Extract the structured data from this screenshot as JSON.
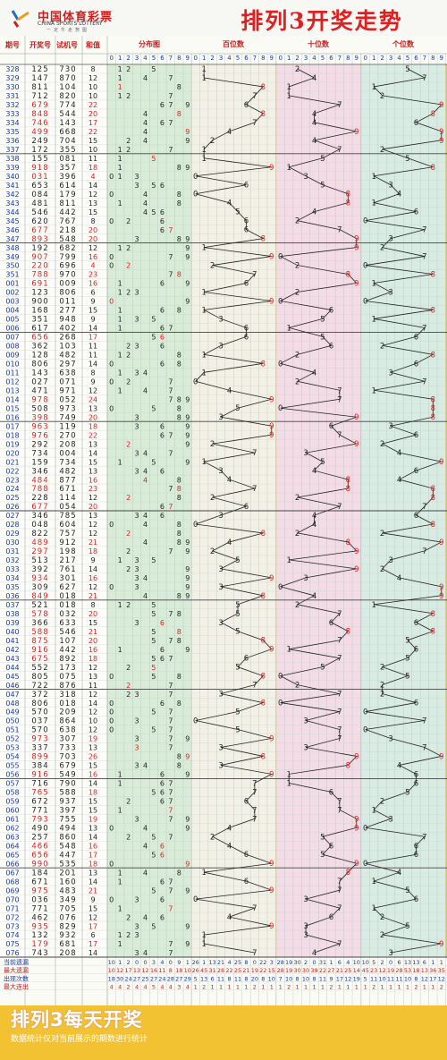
{
  "logo": {
    "cn": "中国体育彩票",
    "en": "CHINA SPORTS LOTTERY",
    "slogan": "一定牛走势图"
  },
  "title": "排列3开奖走势",
  "footer": {
    "title": "排列3每天开奖",
    "subtitle": "数据统计仅对当前展示的期数进行统计"
  },
  "header": {
    "period": "期号",
    "draw": "开奖号",
    "trial": "试机号",
    "sum": "和值",
    "dist": "分布图",
    "hundreds": "百位数",
    "tens": "十位数",
    "ones": "个位数",
    "digits": [
      "0",
      "1",
      "2",
      "3",
      "4",
      "5",
      "6",
      "7",
      "8",
      "9"
    ]
  },
  "colors": {
    "hundreds_bg": "#f3f1e6",
    "tens_bg": "#f3dce6",
    "ones_bg": "#d8ece4",
    "dist_bg": "#d8ecd8",
    "red": "#e02020",
    "accent": "#f2c232"
  },
  "chart_data": {
    "type": "table",
    "columns": [
      "期号",
      "开奖号",
      "试机号",
      "和值"
    ],
    "rows": [
      [
        "328",
        "125",
        "730",
        "8"
      ],
      [
        "329",
        "147",
        "870",
        "12"
      ],
      [
        "330",
        "811",
        "104",
        "10"
      ],
      [
        "331",
        "712",
        "820",
        "10"
      ],
      [
        "332",
        "679",
        "774",
        "22"
      ],
      [
        "333",
        "848",
        "544",
        "20"
      ],
      [
        "334",
        "746",
        "143",
        "17"
      ],
      [
        "335",
        "499",
        "668",
        "22"
      ],
      [
        "336",
        "249",
        "704",
        "15"
      ],
      [
        "337",
        "172",
        "355",
        "10"
      ],
      [
        "338",
        "155",
        "081",
        "11"
      ],
      [
        "339",
        "918",
        "357",
        "18"
      ],
      [
        "340",
        "031",
        "396",
        "4"
      ],
      [
        "341",
        "653",
        "614",
        "14"
      ],
      [
        "342",
        "084",
        "179",
        "12"
      ],
      [
        "343",
        "481",
        "811",
        "13"
      ],
      [
        "344",
        "546",
        "442",
        "15"
      ],
      [
        "345",
        "620",
        "767",
        "8"
      ],
      [
        "346",
        "677",
        "218",
        "20"
      ],
      [
        "347",
        "893",
        "548",
        "20"
      ],
      [
        "348",
        "192",
        "682",
        "12"
      ],
      [
        "349",
        "907",
        "799",
        "16"
      ],
      [
        "350",
        "220",
        "696",
        "4"
      ],
      [
        "351",
        "788",
        "970",
        "23"
      ],
      [
        "001",
        "691",
        "009",
        "16"
      ],
      [
        "002",
        "123",
        "806",
        "6"
      ],
      [
        "003",
        "900",
        "011",
        "9"
      ],
      [
        "004",
        "168",
        "277",
        "15"
      ],
      [
        "005",
        "351",
        "948",
        "9"
      ],
      [
        "006",
        "617",
        "402",
        "14"
      ],
      [
        "007",
        "656",
        "268",
        "17"
      ],
      [
        "008",
        "362",
        "103",
        "11"
      ],
      [
        "009",
        "128",
        "482",
        "11"
      ],
      [
        "010",
        "806",
        "297",
        "14"
      ],
      [
        "011",
        "143",
        "638",
        "8"
      ],
      [
        "012",
        "027",
        "071",
        "9"
      ],
      [
        "013",
        "471",
        "971",
        "12"
      ],
      [
        "014",
        "978",
        "052",
        "24"
      ],
      [
        "015",
        "508",
        "973",
        "13"
      ],
      [
        "016",
        "398",
        "749",
        "20"
      ],
      [
        "017",
        "963",
        "119",
        "18"
      ],
      [
        "018",
        "976",
        "270",
        "22"
      ],
      [
        "019",
        "292",
        "208",
        "13"
      ],
      [
        "020",
        "734",
        "004",
        "14"
      ],
      [
        "021",
        "159",
        "734",
        "15"
      ],
      [
        "022",
        "346",
        "482",
        "13"
      ],
      [
        "023",
        "484",
        "877",
        "16"
      ],
      [
        "024",
        "788",
        "671",
        "23"
      ],
      [
        "025",
        "228",
        "114",
        "12"
      ],
      [
        "026",
        "677",
        "054",
        "20"
      ],
      [
        "027",
        "346",
        "785",
        "13"
      ],
      [
        "028",
        "048",
        "604",
        "12"
      ],
      [
        "029",
        "822",
        "757",
        "12"
      ],
      [
        "030",
        "489",
        "912",
        "21"
      ],
      [
        "031",
        "297",
        "198",
        "18"
      ],
      [
        "032",
        "513",
        "217",
        "9"
      ],
      [
        "033",
        "392",
        "761",
        "14"
      ],
      [
        "034",
        "934",
        "301",
        "16"
      ],
      [
        "035",
        "309",
        "627",
        "12"
      ],
      [
        "036",
        "849",
        "018",
        "21"
      ],
      [
        "037",
        "521",
        "018",
        "8"
      ],
      [
        "038",
        "578",
        "032",
        "20"
      ],
      [
        "039",
        "366",
        "633",
        "15"
      ],
      [
        "040",
        "588",
        "546",
        "21"
      ],
      [
        "041",
        "875",
        "107",
        "20"
      ],
      [
        "042",
        "916",
        "442",
        "16"
      ],
      [
        "043",
        "675",
        "892",
        "18"
      ],
      [
        "044",
        "552",
        "173",
        "12"
      ],
      [
        "045",
        "805",
        "075",
        "13"
      ],
      [
        "046",
        "722",
        "876",
        "11"
      ],
      [
        "047",
        "372",
        "318",
        "12"
      ],
      [
        "048",
        "806",
        "018",
        "14"
      ],
      [
        "049",
        "570",
        "209",
        "12"
      ],
      [
        "050",
        "037",
        "864",
        "10"
      ],
      [
        "051",
        "570",
        "638",
        "12"
      ],
      [
        "052",
        "973",
        "307",
        "19"
      ],
      [
        "053",
        "337",
        "733",
        "13"
      ],
      [
        "054",
        "899",
        "703",
        "26"
      ],
      [
        "055",
        "384",
        "679",
        "15"
      ],
      [
        "056",
        "916",
        "549",
        "16"
      ],
      [
        "057",
        "716",
        "790",
        "14"
      ],
      [
        "058",
        "765",
        "588",
        "18"
      ],
      [
        "059",
        "672",
        "937",
        "15"
      ],
      [
        "060",
        "771",
        "397",
        "15"
      ],
      [
        "061",
        "793",
        "755",
        "19"
      ],
      [
        "062",
        "490",
        "494",
        "13"
      ],
      [
        "063",
        "257",
        "860",
        "14"
      ],
      [
        "064",
        "466",
        "548",
        "16"
      ],
      [
        "065",
        "656",
        "447",
        "17"
      ],
      [
        "066",
        "990",
        "535",
        "18"
      ],
      [
        "067",
        "184",
        "201",
        "13"
      ],
      [
        "068",
        "671",
        "160",
        "14"
      ],
      [
        "069",
        "975",
        "483",
        "21"
      ],
      [
        "070",
        "036",
        "349",
        "9"
      ],
      [
        "071",
        "771",
        "705",
        "15"
      ],
      [
        "072",
        "462",
        "076",
        "12"
      ],
      [
        "073",
        "935",
        "829",
        "17"
      ],
      [
        "074",
        "132",
        "932",
        "6"
      ],
      [
        "075",
        "179",
        "681",
        "17"
      ],
      [
        "076",
        "743",
        "208",
        "14"
      ]
    ],
    "stats": {
      "labels": [
        "当前遗漏",
        "最大遗漏",
        "出现次数",
        "最大连出"
      ],
      "dist": [
        [
          "10",
          "1",
          "2",
          "0",
          "0",
          "3",
          "4",
          "0",
          "9",
          "1"
        ],
        [
          "10",
          "12",
          "17",
          "13",
          "12",
          "16",
          "11",
          "8",
          "18",
          "10"
        ],
        [
          "18",
          "30",
          "24",
          "27",
          "25",
          "27",
          "24",
          "28",
          "27",
          "29"
        ],
        [
          "4",
          "4",
          "2",
          "4",
          "4",
          "5",
          "4",
          "4",
          "3",
          "4"
        ]
      ],
      "hundreds": [
        [
          "26",
          "1",
          "13",
          "21",
          "4",
          "25",
          "8",
          "0",
          "22",
          "3"
        ],
        [
          "26",
          "45",
          "31",
          "28",
          "22",
          "25",
          "21",
          "19",
          "22",
          "15"
        ],
        [
          "5",
          "13",
          "6",
          "11",
          "8",
          "11",
          "8",
          "20",
          "8",
          "10"
        ],
        [
          "1",
          "2",
          "1",
          "1",
          "1",
          "1",
          "1",
          "2",
          "1",
          "1"
        ]
      ],
      "tens": [
        [
          "28",
          "19",
          "30",
          "2",
          "0",
          "31",
          "1",
          "6",
          "4",
          "10"
        ],
        [
          "28",
          "19",
          "30",
          "30",
          "39",
          "22",
          "27",
          "21",
          "25",
          "14"
        ],
        [
          "7",
          "10",
          "8",
          "10",
          "8",
          "11",
          "9",
          "17",
          "12",
          "19"
        ],
        [
          "1",
          "2",
          "1",
          "1",
          "1",
          "1",
          "2",
          "1",
          "1",
          "1"
        ]
      ],
      "ones": [
        [
          "10",
          "5",
          "2",
          "0",
          "6",
          "13",
          "13",
          "6",
          "1",
          "1"
        ],
        [
          "45",
          "23",
          "12",
          "19",
          "28",
          "53",
          "18",
          "13",
          "36",
          "35"
        ],
        [
          "5",
          "11",
          "10",
          "11",
          "11",
          "10",
          "8",
          "12",
          "17",
          "12"
        ],
        [
          "1",
          "2",
          "1",
          "1",
          "1",
          "1",
          "2",
          "1",
          "1",
          "2"
        ]
      ]
    }
  }
}
